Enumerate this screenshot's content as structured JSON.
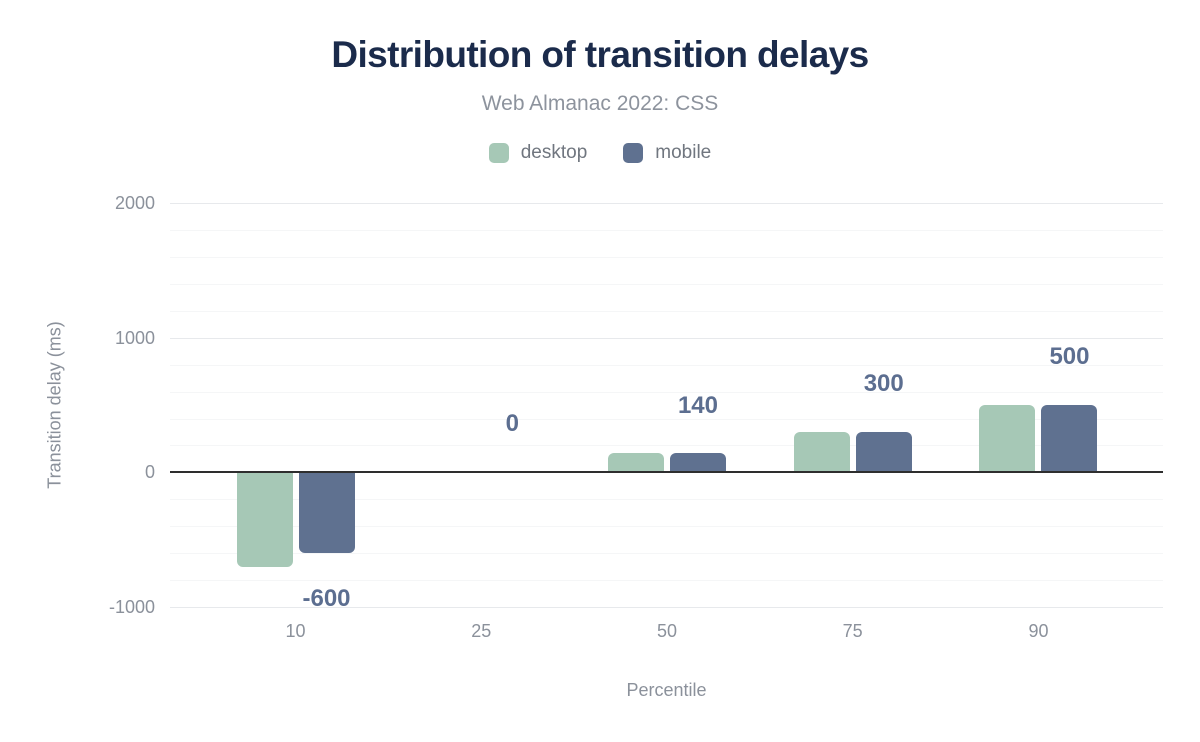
{
  "chart_data": {
    "type": "bar",
    "title": "Distribution of transition delays",
    "subtitle": "Web Almanac 2022: CSS",
    "xlabel": "Percentile",
    "ylabel": "Transition delay (ms)",
    "categories": [
      "10",
      "25",
      "50",
      "75",
      "90"
    ],
    "series": [
      {
        "name": "desktop",
        "color": "#a6c8b6",
        "values": [
          -700,
          0,
          140,
          300,
          500
        ]
      },
      {
        "name": "mobile",
        "color": "#5f7190",
        "values": [
          -600,
          0,
          140,
          300,
          500
        ]
      }
    ],
    "data_labels": [
      "-600",
      "0",
      "140",
      "300",
      "500"
    ],
    "data_label_series": "mobile",
    "ylim": [
      -1000,
      2000
    ],
    "yticks": [
      2000,
      1000,
      0,
      -1000
    ],
    "ytick_labels": [
      "2000",
      "1000",
      "0",
      "-1000"
    ],
    "grid_step": 200,
    "grid": true,
    "legend_position": "top",
    "colors": {
      "title": "#1b2b4b",
      "subtitle": "#8d939d",
      "axis_text": "#8b919b",
      "legend_text": "#70767f",
      "value_label": "#5c6e90",
      "zero_line": "#2e2e2e",
      "grid_major": "#e7e9ec",
      "grid_minor": "#f5f6f7"
    }
  }
}
